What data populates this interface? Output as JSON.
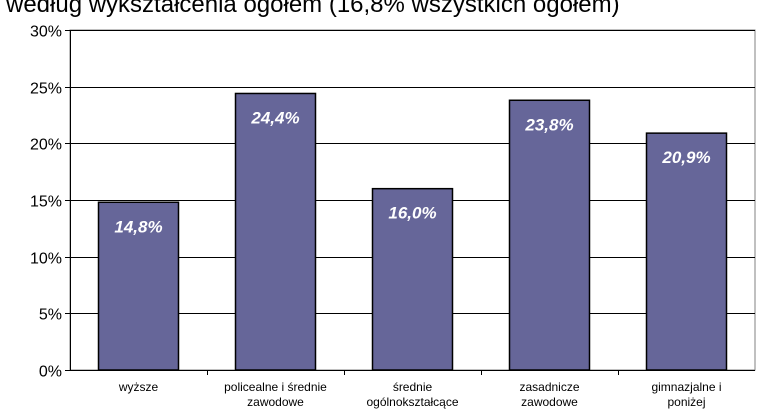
{
  "chart_data": {
    "type": "bar",
    "title": "według wykształcenia ogółem (16,8% wszystkich ogółem)",
    "categories": [
      [
        "wyższe"
      ],
      [
        "policealne i średnie",
        "zawodowe"
      ],
      [
        "średnie",
        "ogólnokształcące"
      ],
      [
        "zasadnicze",
        "zawodowe"
      ],
      [
        "gimnazjalne i",
        "poniżej"
      ]
    ],
    "values": [
      14.8,
      24.4,
      16.0,
      23.8,
      20.9
    ],
    "data_labels": [
      "14,8%",
      "24,4%",
      "16,0%",
      "23,8%",
      "20,9%"
    ],
    "y_ticks": [
      "0%",
      "5%",
      "10%",
      "15%",
      "20%",
      "25%",
      "30%"
    ],
    "ylim": [
      0,
      30
    ],
    "grid": true,
    "legend": false,
    "colors": {
      "bar": "#666699",
      "bar_border": "#000000",
      "plot_background": "#ffffff",
      "gridline": "#000000"
    }
  }
}
